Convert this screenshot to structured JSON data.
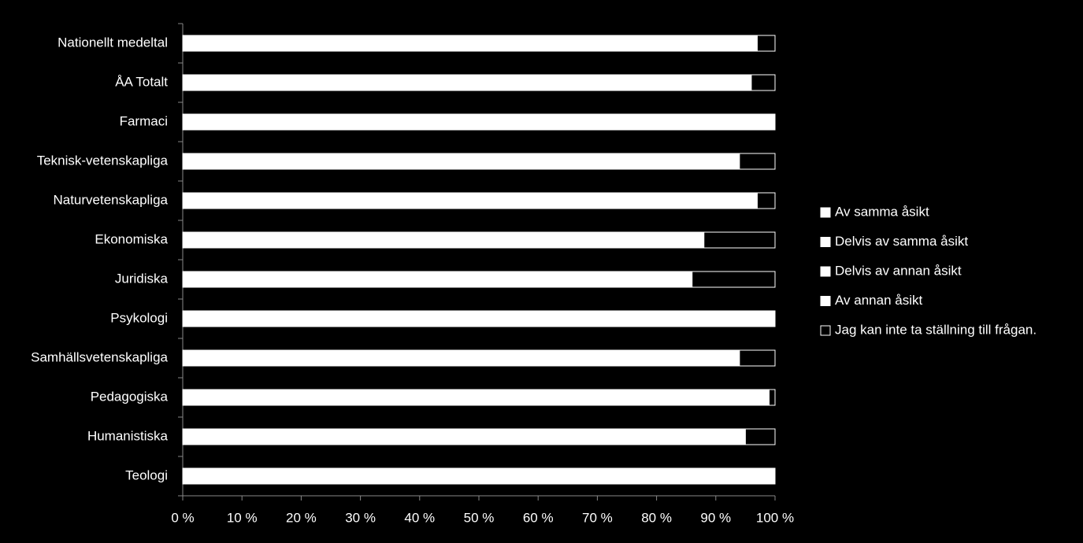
{
  "chart_data": {
    "type": "stacked-bar-horizontal",
    "categories": [
      "Nationellt medeltal",
      "ÅA Totalt",
      "Farmaci",
      "Teknisk-vetenskapliga",
      "Naturvetenskapliga",
      "Ekonomiska",
      "Juridiska",
      "Psykologi",
      "Samhällsvetenskapliga",
      "Pedagogiska",
      "Humanistiska",
      "Teologi"
    ],
    "series": [
      {
        "name": "Av samma åsikt",
        "color": "#ffffff",
        "values": [
          97,
          96,
          100,
          94,
          97,
          88,
          86,
          100,
          94,
          99,
          95,
          100
        ]
      },
      {
        "name": "Delvis av samma åsikt",
        "color": "#ffffff",
        "values": [
          0,
          0,
          0,
          0,
          0,
          0,
          0,
          0,
          0,
          0,
          0,
          0
        ]
      },
      {
        "name": "Delvis av annan åsikt",
        "color": "#ffffff",
        "values": [
          0,
          0,
          0,
          0,
          0,
          0,
          0,
          0,
          0,
          0,
          0,
          0
        ]
      },
      {
        "name": "Av annan åsikt",
        "color": "#ffffff",
        "values": [
          0,
          0,
          0,
          0,
          0,
          0,
          0,
          0,
          0,
          0,
          0,
          0
        ]
      },
      {
        "name": "Jag kan inte ta ställning till frågan.",
        "color": "#000000",
        "values": [
          3,
          4,
          0,
          6,
          3,
          12,
          14,
          0,
          6,
          1,
          5,
          0
        ]
      }
    ],
    "xlim": [
      0,
      100
    ],
    "xticks": [
      {
        "value": 0,
        "label": "0 %"
      },
      {
        "value": 10,
        "label": "10 %"
      },
      {
        "value": 20,
        "label": "20 %"
      },
      {
        "value": 30,
        "label": "30 %"
      },
      {
        "value": 40,
        "label": "40 %"
      },
      {
        "value": 50,
        "label": "50 %"
      },
      {
        "value": 60,
        "label": "60 %"
      },
      {
        "value": 70,
        "label": "70 %"
      },
      {
        "value": 80,
        "label": "80 %"
      },
      {
        "value": 90,
        "label": "90 %"
      },
      {
        "value": 100,
        "label": "100 %"
      }
    ],
    "legend": "right"
  }
}
